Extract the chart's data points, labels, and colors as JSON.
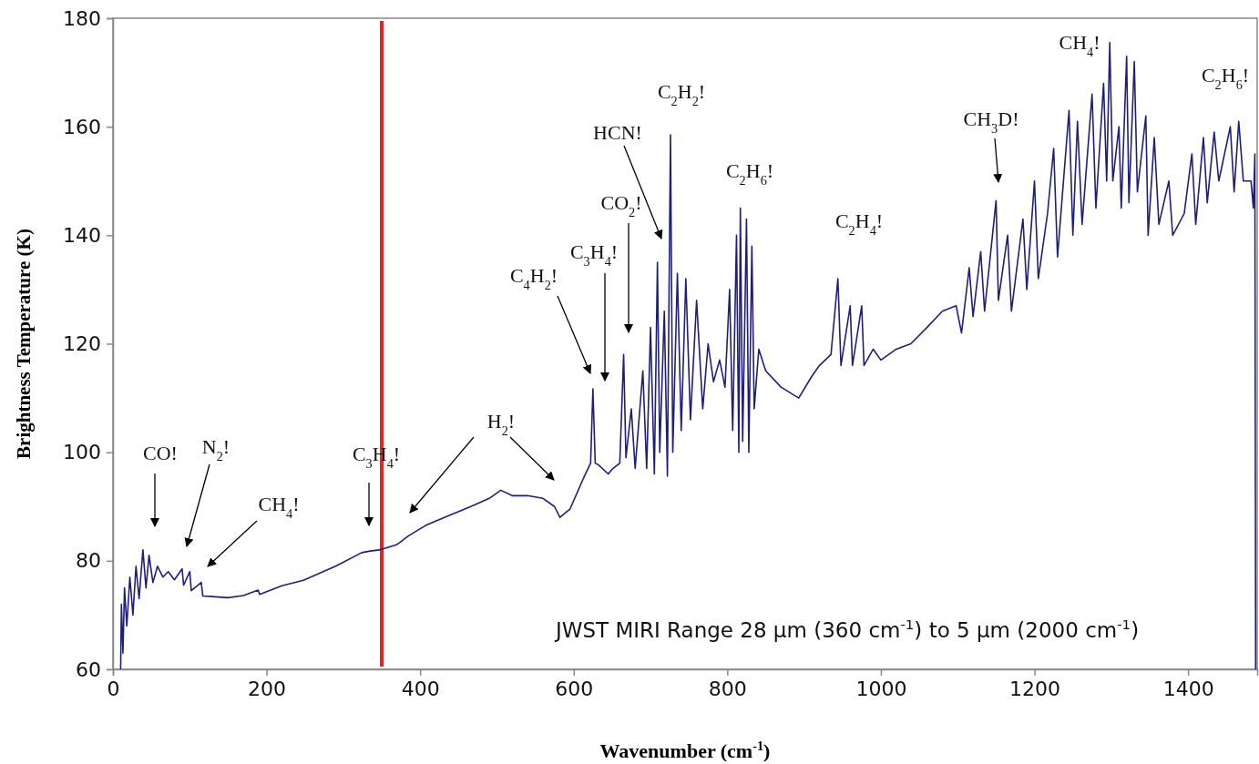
{
  "chart_data": {
    "type": "line",
    "xlabel": "Wavenumber (cm$^{-1}$)",
    "ylabel": "Brightness Temperature (K)",
    "xlim": [
      0,
      1490
    ],
    "ylim": [
      60,
      180
    ],
    "xticks": [
      0,
      200,
      400,
      600,
      800,
      1000,
      1200,
      1400
    ],
    "yticks": [
      60,
      80,
      100,
      120,
      140,
      160,
      180
    ],
    "grid": false,
    "marker": "none",
    "line_style": "solid",
    "series": [
      {
        "color": "#1f1f7a",
        "x": [
          10,
          11,
          13,
          15,
          18,
          22,
          26,
          30,
          34,
          39,
          43,
          47,
          52,
          58,
          65,
          72,
          80,
          90,
          92,
          100,
          102,
          115,
          117,
          129,
          150,
          170,
          189,
          191,
          220,
          248,
          290,
          324,
          335,
          347,
          370,
          385,
          407,
          440,
          466,
          490,
          505,
          520,
          540,
          560,
          575,
          582,
          595,
          612,
          622,
          625,
          628,
          632,
          645,
          651,
          660,
          665,
          668,
          675,
          680,
          690,
          695,
          700,
          705,
          709,
          712,
          718,
          722,
          726,
          729,
          735,
          740,
          746,
          752,
          760,
          768,
          775,
          782,
          790,
          797,
          803,
          807,
          812,
          815,
          817,
          820,
          825,
          828,
          832,
          835,
          841,
          850,
          870,
          893,
          910,
          920,
          935,
          944,
          948,
          960,
          963,
          975,
          978,
          990,
          1000,
          1020,
          1039,
          1060,
          1080,
          1098,
          1105,
          1115,
          1120,
          1130,
          1135,
          1150,
          1153,
          1165,
          1170,
          1185,
          1190,
          1200,
          1205,
          1217,
          1225,
          1230,
          1245,
          1250,
          1256,
          1262,
          1275,
          1280,
          1290,
          1294,
          1298,
          1302,
          1310,
          1313,
          1320,
          1323,
          1330,
          1334,
          1345,
          1348,
          1356,
          1362,
          1375,
          1380,
          1395,
          1405,
          1410,
          1420,
          1425,
          1434,
          1440,
          1455,
          1460,
          1466,
          1472,
          1482,
          1485,
          1487,
          1488
        ],
        "values": [
          60,
          72,
          63,
          75,
          68,
          77,
          70,
          79,
          73,
          82,
          75,
          81,
          76,
          79,
          77,
          78,
          76.5,
          78.5,
          75.5,
          78,
          74.5,
          76,
          73.5,
          73.4,
          73.2,
          73.6,
          74.6,
          73.8,
          75.4,
          76.4,
          79,
          81.5,
          81.8,
          82,
          83,
          84.6,
          86.5,
          88.5,
          90,
          91.5,
          93,
          92,
          92,
          91.5,
          90,
          88,
          89.5,
          95,
          98,
          111.7,
          98,
          97.7,
          96,
          97,
          98,
          118,
          99,
          108,
          97,
          115,
          97,
          123,
          96,
          135,
          100,
          126,
          95.6,
          158.5,
          100,
          133,
          104,
          132,
          106,
          128,
          108,
          120,
          113,
          117,
          112,
          130,
          104,
          140,
          100,
          145,
          102,
          143,
          100,
          138,
          108,
          119,
          115,
          112,
          110,
          114,
          116,
          118,
          132,
          116,
          127,
          116,
          127,
          116,
          119,
          117,
          119,
          120,
          123,
          126,
          127,
          122,
          134,
          125,
          137,
          126,
          146.4,
          128,
          140,
          126,
          143,
          130,
          150,
          132,
          144,
          156,
          136,
          163,
          140,
          161,
          142,
          166,
          145,
          168,
          150,
          175.5,
          150,
          160,
          145,
          173,
          146,
          172,
          148,
          162,
          140,
          158,
          142,
          150,
          140,
          144,
          155,
          142,
          158,
          146,
          159,
          150,
          160,
          148,
          161,
          150,
          150,
          145,
          155,
          60
        ]
      }
    ],
    "ref_lines": [
      {
        "axis": "x",
        "value": 350,
        "color": "#e8211e"
      }
    ],
    "annotations": [
      "CO!",
      "N$_{2}$!",
      "CH$_{4}$!",
      "C$_{3}$H$_{4}$!",
      "H$_{2}$!",
      "C$_{4}$H$_{2}$!",
      "C$_{3}$H$_{4}$!",
      "CO$_{2}$!",
      "HCN!",
      "C$_{2}$H$_{2}$!",
      "C$_{2}$H$_{6}$!",
      "C$_{2}$H$_{4}$!",
      "CH$_{3}$D!",
      "CH$_{4}$!",
      "C$_{2}$H$_{6}$!",
      "JWST MIRI Range 28 µm (360 cm$^{-1}$) to 5 µm (2000 cm$^{-1}$)"
    ]
  }
}
